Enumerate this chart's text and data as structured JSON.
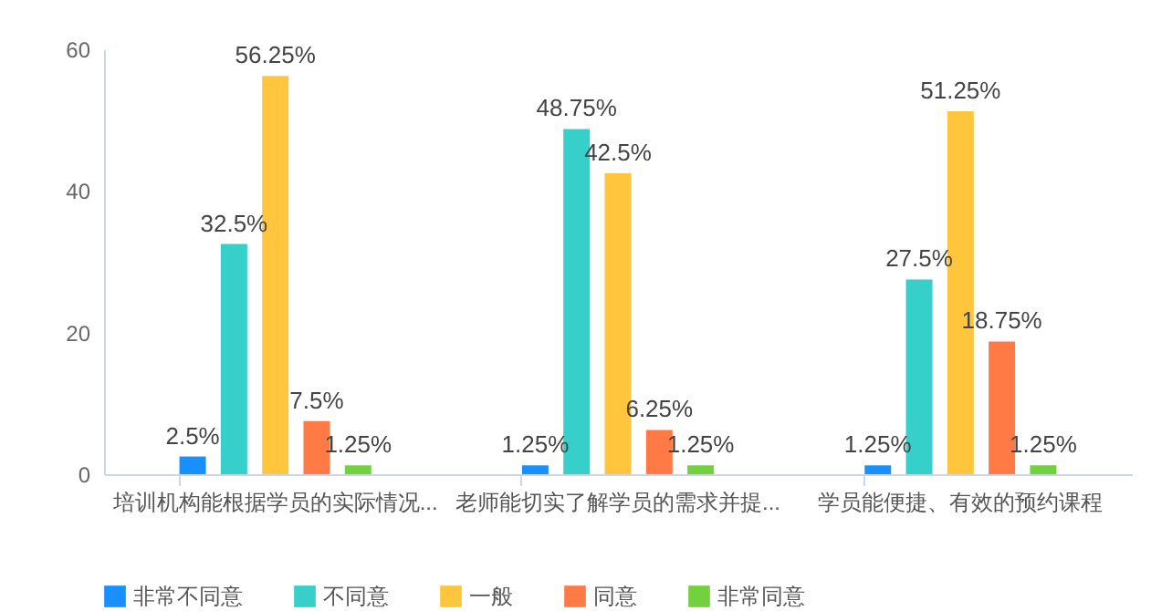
{
  "chart_data": {
    "type": "bar",
    "categories": [
      "培训机构能根据学员的实际情况...",
      "老师能切实了解学员的需求并提...",
      "学员能便捷、有效的预约课程"
    ],
    "series": [
      {
        "name": "非常不同意",
        "color": "#1890ff",
        "values": [
          2.5,
          1.25,
          1.25
        ],
        "value_labels": [
          "2.5%",
          "1.25%",
          "1.25%"
        ]
      },
      {
        "name": "不同意",
        "color": "#36cfc9",
        "values": [
          32.5,
          48.75,
          27.5
        ],
        "value_labels": [
          "32.5%",
          "48.75%",
          "27.5%"
        ]
      },
      {
        "name": "一般",
        "color": "#ffc53d",
        "values": [
          56.25,
          42.5,
          51.25
        ],
        "value_labels": [
          "56.25%",
          "42.5%",
          "51.25%"
        ]
      },
      {
        "name": "同意",
        "color": "#ff7a45",
        "values": [
          7.5,
          6.25,
          18.75
        ],
        "value_labels": [
          "7.5%",
          "6.25%",
          "18.75%"
        ]
      },
      {
        "name": "非常同意",
        "color": "#73d13d",
        "values": [
          1.25,
          1.25,
          1.25
        ],
        "value_labels": [
          "1.25%",
          "1.25%",
          "1.25%"
        ]
      }
    ],
    "ylim": [
      0,
      60
    ],
    "yticks": [
      0,
      20,
      40,
      60
    ],
    "legend": "bottom"
  }
}
